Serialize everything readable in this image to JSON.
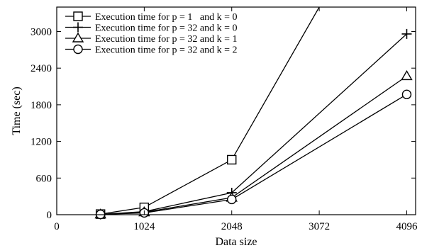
{
  "chart_data": {
    "type": "line",
    "xlabel": "Data size",
    "ylabel": "Time (sec)",
    "xlim": [
      0,
      4200
    ],
    "ylim": [
      0,
      3400
    ],
    "xticks": [
      0,
      1024,
      2048,
      3072,
      4096
    ],
    "yticks": [
      0,
      600,
      1200,
      1800,
      2400,
      3000
    ],
    "legend_position": "top-left",
    "series": [
      {
        "name": "Execution time for p = 1   and k = 0",
        "marker": "square",
        "x": [
          512,
          1024,
          2048,
          3072
        ],
        "y": [
          10,
          120,
          900,
          3400
        ]
      },
      {
        "name": "Execution time for p = 32 and k = 0",
        "marker": "plus",
        "x": [
          512,
          1024,
          2048,
          4096
        ],
        "y": [
          5,
          50,
          360,
          2960
        ]
      },
      {
        "name": "Execution time for p = 32 and k = 1",
        "marker": "triangle",
        "x": [
          512,
          1024,
          2048,
          4096
        ],
        "y": [
          5,
          40,
          280,
          2270
        ]
      },
      {
        "name": "Execution time for p = 32 and k = 2",
        "marker": "circle",
        "x": [
          512,
          1024,
          2048,
          4096
        ],
        "y": [
          5,
          30,
          250,
          1970
        ]
      }
    ]
  }
}
